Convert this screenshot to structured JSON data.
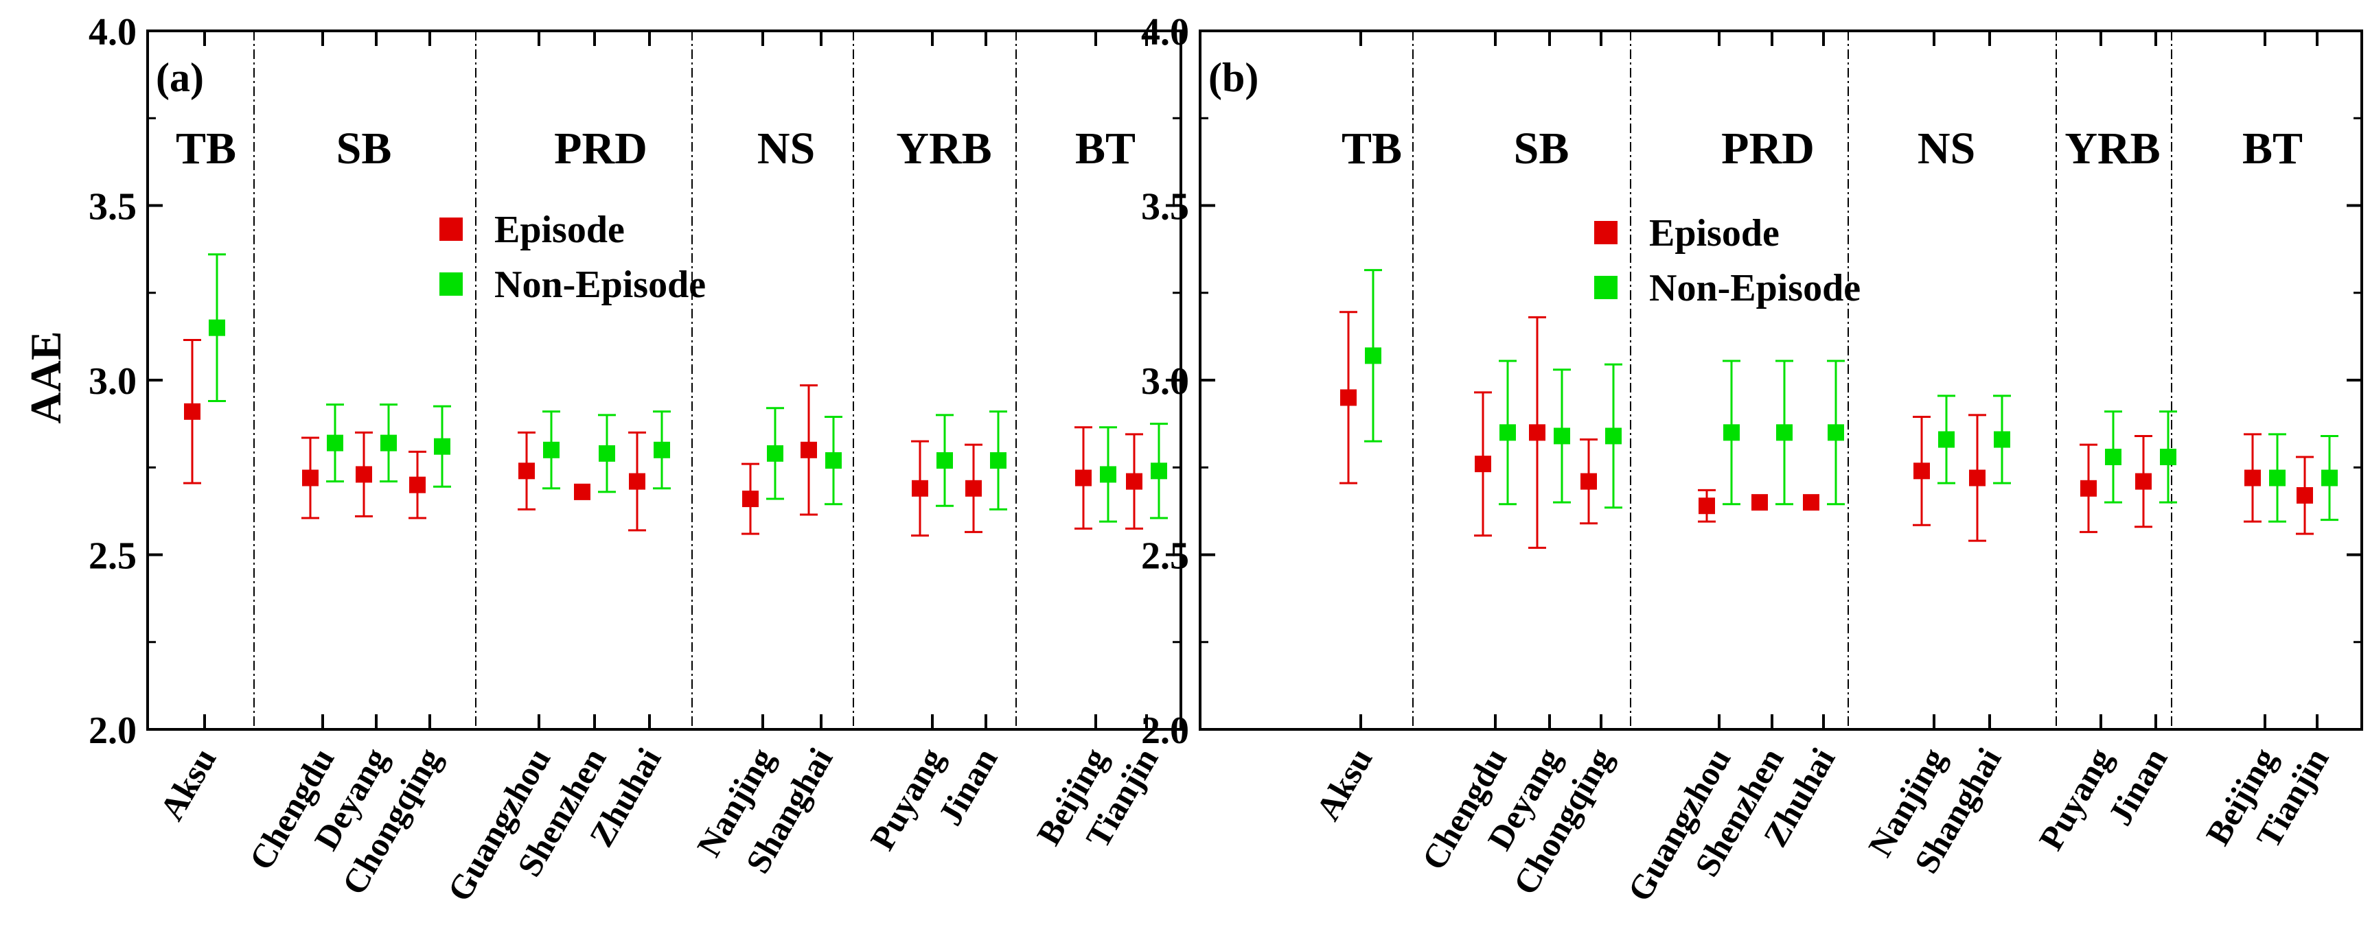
{
  "figure": {
    "ylabel": "AAE",
    "ylim": [
      2.0,
      4.0
    ],
    "yticks": [
      "2.0",
      "2.5",
      "3.0",
      "3.5",
      "4.0"
    ],
    "legend": [
      {
        "name": "Episode",
        "color": "#e00000"
      },
      {
        "name": "Non-Episode",
        "color": "#00e000"
      }
    ]
  },
  "chart_data": [
    {
      "type": "scatter",
      "panel_label": "(a)",
      "ylabel": "AAE",
      "ylim": [
        2.0,
        4.0
      ],
      "legend_position": "top-center",
      "groups": [
        {
          "name": "TB",
          "categories": [
            "Aksu"
          ]
        },
        {
          "name": "SB",
          "categories": [
            "Chengdu",
            "Deyang",
            "Chongqing"
          ]
        },
        {
          "name": "PRD",
          "categories": [
            "Guangzhou",
            "Shenzhen",
            "Zhuhai"
          ]
        },
        {
          "name": "NS",
          "categories": [
            "Nanjing",
            "Shanghai"
          ]
        },
        {
          "name": "YRB",
          "categories": [
            "Puyang",
            "Jinan"
          ]
        },
        {
          "name": "BT",
          "categories": [
            "Beijing",
            "Tianjin"
          ]
        }
      ],
      "categories": [
        "Aksu",
        "Chengdu",
        "Deyang",
        "Chongqing",
        "Guangzhou",
        "Shenzhen",
        "Zhuhai",
        "Nanjing",
        "Shanghai",
        "Puyang",
        "Jinan",
        "Beijing",
        "Tianjin"
      ],
      "series": [
        {
          "name": "Episode",
          "color": "#e00000",
          "values": [
            2.91,
            2.72,
            2.73,
            2.7,
            2.74,
            2.68,
            2.71,
            2.66,
            2.8,
            2.69,
            2.69,
            2.72,
            2.71
          ],
          "errors": [
            0.205,
            0.115,
            0.12,
            0.095,
            0.11,
            0.0,
            0.14,
            0.1,
            0.185,
            0.135,
            0.125,
            0.145,
            0.135
          ]
        },
        {
          "name": "Non-Episode",
          "color": "#00e000",
          "values": [
            3.15,
            2.82,
            2.82,
            2.81,
            2.8,
            2.79,
            2.8,
            2.79,
            2.77,
            2.77,
            2.77,
            2.73,
            2.74
          ],
          "errors": [
            0.21,
            0.11,
            0.11,
            0.115,
            0.11,
            0.11,
            0.11,
            0.13,
            0.125,
            0.13,
            0.14,
            0.135,
            0.135
          ]
        }
      ]
    },
    {
      "type": "scatter",
      "panel_label": "(b)",
      "ylabel": "",
      "ylim": [
        2.0,
        4.0
      ],
      "legend_position": "top-center",
      "groups": [
        {
          "name": "TB",
          "categories": [
            "Aksu"
          ]
        },
        {
          "name": "SB",
          "categories": [
            "Chengdu",
            "Deyang",
            "Chongqing"
          ]
        },
        {
          "name": "PRD",
          "categories": [
            "Guangzhou",
            "Shenzhen",
            "Zhuhai"
          ]
        },
        {
          "name": "NS",
          "categories": [
            "Nanjing",
            "Shanghai"
          ]
        },
        {
          "name": "YRB",
          "categories": [
            "Puyang",
            "Jinan"
          ]
        },
        {
          "name": "BT",
          "categories": [
            "Beijing",
            "Tianjin"
          ]
        }
      ],
      "categories": [
        "Aksu",
        "Chengdu",
        "Deyang",
        "Chongqing",
        "Guangzhou",
        "Shenzhen",
        "Zhuhai",
        "Nanjing",
        "Shanghai",
        "Puyang",
        "Jinan",
        "Beijing",
        "Tianjin"
      ],
      "series": [
        {
          "name": "Episode",
          "color": "#e00000",
          "values": [
            2.95,
            2.76,
            2.85,
            2.71,
            2.64,
            2.65,
            2.65,
            2.74,
            2.72,
            2.69,
            2.71,
            2.72,
            2.67
          ],
          "errors": [
            0.245,
            0.205,
            0.33,
            0.12,
            0.045,
            0.0,
            0.0,
            0.155,
            0.18,
            0.125,
            0.13,
            0.125,
            0.11
          ]
        },
        {
          "name": "Non-Episode",
          "color": "#00e000",
          "values": [
            3.07,
            2.85,
            2.84,
            2.84,
            2.85,
            2.85,
            2.85,
            2.83,
            2.83,
            2.78,
            2.78,
            2.72,
            2.72
          ],
          "errors": [
            0.245,
            0.205,
            0.19,
            0.205,
            0.205,
            0.205,
            0.205,
            0.125,
            0.125,
            0.13,
            0.13,
            0.125,
            0.12
          ]
        }
      ]
    }
  ]
}
